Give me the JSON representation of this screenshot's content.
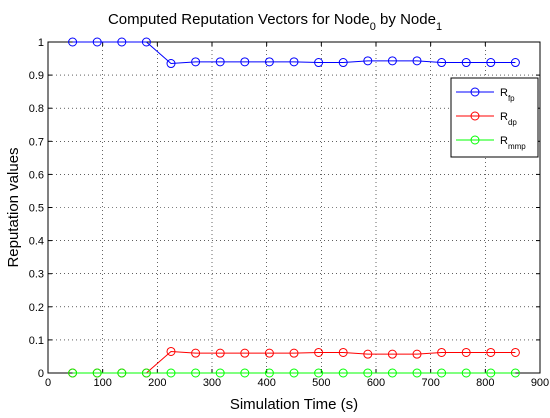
{
  "chart_data": {
    "type": "line",
    "title": {
      "base": "Computed Reputation Vectors for Node",
      "sub1": "0",
      "mid": " by Node",
      "sub2": "1"
    },
    "xlabel": "Simulation Time (s)",
    "ylabel": "Reputation values",
    "xlim": [
      0,
      900
    ],
    "ylim": [
      0,
      1
    ],
    "xticks": [
      0,
      100,
      200,
      300,
      400,
      500,
      600,
      700,
      800,
      900
    ],
    "yticks": [
      0,
      0.1,
      0.2,
      0.3,
      0.4,
      0.5,
      0.6,
      0.7,
      0.8,
      0.9,
      1
    ],
    "grid": true,
    "legend_position": "top-right",
    "x": [
      45,
      90,
      135,
      180,
      225,
      270,
      315,
      360,
      405,
      450,
      495,
      540,
      585,
      630,
      675,
      720,
      765,
      810,
      855
    ],
    "series": [
      {
        "name": "R",
        "sub": "fp",
        "color": "#0000ff",
        "values": [
          1.0,
          1.0,
          1.0,
          1.0,
          0.935,
          0.94,
          0.94,
          0.94,
          0.94,
          0.94,
          0.938,
          0.938,
          0.943,
          0.943,
          0.943,
          0.938,
          0.938,
          0.938,
          0.938
        ]
      },
      {
        "name": "R",
        "sub": "dp",
        "color": "#ff0000",
        "values": [
          0.0,
          0.0,
          0.0,
          0.0,
          0.065,
          0.06,
          0.06,
          0.06,
          0.06,
          0.06,
          0.062,
          0.062,
          0.057,
          0.057,
          0.057,
          0.062,
          0.062,
          0.062,
          0.062
        ]
      },
      {
        "name": "R",
        "sub": "mmp",
        "color": "#00ff00",
        "values": [
          0.0,
          0.0,
          0.0,
          0.0,
          0.0,
          0.0,
          0.0,
          0.0,
          0.0,
          0.0,
          0.0,
          0.0,
          0.0,
          0.0,
          0.0,
          0.0,
          0.0,
          0.0,
          0.0
        ]
      }
    ]
  }
}
